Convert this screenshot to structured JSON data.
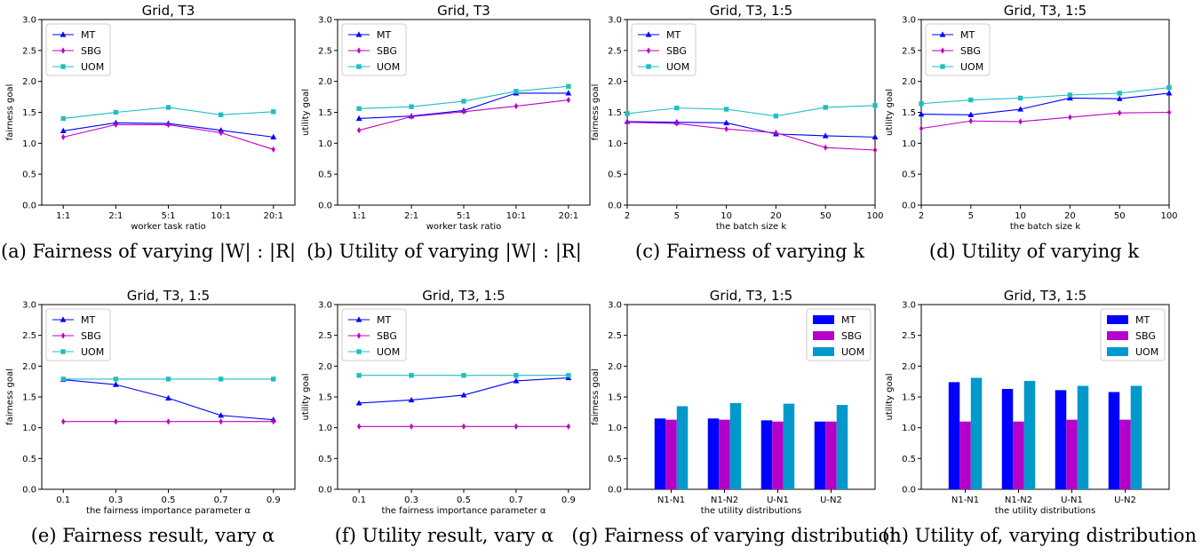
{
  "colors": {
    "MT": "#0000ff",
    "SBG": "#c000c0",
    "UOM": "#1fbfbf",
    "MT_bar": "#0000ff",
    "SBG_bar": "#b400c8",
    "UOM_bar": "#0099cc"
  },
  "chart_data": [
    {
      "type": "line",
      "title": "Grid, T3",
      "xlabel": "worker task ratio",
      "ylabel": "fairness goal",
      "caption": "(a) Fairness of varying |W| : |R|",
      "categories": [
        "1:1",
        "2:1",
        "5:1",
        "10:1",
        "20:1"
      ],
      "ylim": [
        0,
        3.0
      ],
      "yticks": [
        "0.0",
        "0.5",
        "1.0",
        "1.5",
        "2.0",
        "2.5",
        "3.0"
      ],
      "legend": "top-left",
      "series": [
        {
          "name": "MT",
          "values": [
            1.2,
            1.33,
            1.32,
            1.21,
            1.1
          ]
        },
        {
          "name": "SBG",
          "values": [
            1.1,
            1.3,
            1.3,
            1.17,
            0.9
          ]
        },
        {
          "name": "UOM",
          "values": [
            1.4,
            1.5,
            1.58,
            1.46,
            1.51
          ]
        }
      ]
    },
    {
      "type": "line",
      "title": "Grid, T3",
      "xlabel": "worker task ratio",
      "ylabel": "utility goal",
      "caption": "(b) Utility of varying |W| : |R|",
      "categories": [
        "1:1",
        "2:1",
        "5:1",
        "10:1",
        "20:1"
      ],
      "ylim": [
        0,
        3.0
      ],
      "yticks": [
        "0.0",
        "0.5",
        "1.0",
        "1.5",
        "2.0",
        "2.5",
        "3.0"
      ],
      "legend": "top-left",
      "series": [
        {
          "name": "MT",
          "values": [
            1.4,
            1.44,
            1.53,
            1.81,
            1.81
          ]
        },
        {
          "name": "SBG",
          "values": [
            1.21,
            1.43,
            1.51,
            1.6,
            1.7
          ]
        },
        {
          "name": "UOM",
          "values": [
            1.56,
            1.59,
            1.68,
            1.84,
            1.92
          ]
        }
      ]
    },
    {
      "type": "line",
      "title": "Grid, T3, 1:5",
      "xlabel": "the batch size k",
      "ylabel": "fairness goal",
      "caption": "(c) Fairness of varying k",
      "categories": [
        "2",
        "5",
        "10",
        "20",
        "50",
        "100"
      ],
      "ylim": [
        0,
        3.0
      ],
      "yticks": [
        "0.0",
        "0.5",
        "1.0",
        "1.5",
        "2.0",
        "2.5",
        "3.0"
      ],
      "legend": "top-left",
      "series": [
        {
          "name": "MT",
          "values": [
            1.35,
            1.34,
            1.33,
            1.15,
            1.12,
            1.1
          ]
        },
        {
          "name": "SBG",
          "values": [
            1.34,
            1.32,
            1.23,
            1.17,
            0.93,
            0.89
          ]
        },
        {
          "name": "UOM",
          "values": [
            1.48,
            1.57,
            1.55,
            1.44,
            1.58,
            1.61
          ]
        }
      ]
    },
    {
      "type": "line",
      "title": "Grid, T3, 1:5",
      "xlabel": "the batch size k",
      "ylabel": "utility goal",
      "caption": "(d) Utility of varying k",
      "categories": [
        "2",
        "5",
        "10",
        "20",
        "50",
        "100"
      ],
      "ylim": [
        0,
        3.0
      ],
      "yticks": [
        "0.0",
        "0.5",
        "1.0",
        "1.5",
        "2.0",
        "2.5",
        "3.0"
      ],
      "legend": "top-left",
      "series": [
        {
          "name": "MT",
          "values": [
            1.47,
            1.46,
            1.55,
            1.73,
            1.72,
            1.81
          ]
        },
        {
          "name": "SBG",
          "values": [
            1.24,
            1.36,
            1.35,
            1.42,
            1.49,
            1.5
          ]
        },
        {
          "name": "UOM",
          "values": [
            1.64,
            1.7,
            1.73,
            1.78,
            1.81,
            1.9
          ]
        }
      ]
    },
    {
      "type": "line",
      "title": "Grid, T3, 1:5",
      "xlabel": "the fairness importance parameter α",
      "ylabel": "fairness goal",
      "caption": "(e) Fairness result, vary α",
      "categories": [
        "0.1",
        "0.3",
        "0.5",
        "0.7",
        "0.9"
      ],
      "ylim": [
        0,
        3.0
      ],
      "yticks": [
        "0.0",
        "0.5",
        "1.0",
        "1.5",
        "2.0",
        "2.5",
        "3.0"
      ],
      "legend": "top-left",
      "series": [
        {
          "name": "MT",
          "values": [
            1.78,
            1.7,
            1.48,
            1.2,
            1.13
          ]
        },
        {
          "name": "SBG",
          "values": [
            1.1,
            1.1,
            1.1,
            1.1,
            1.1
          ]
        },
        {
          "name": "UOM",
          "values": [
            1.79,
            1.79,
            1.79,
            1.79,
            1.79
          ]
        }
      ]
    },
    {
      "type": "line",
      "title": "Grid, T3, 1:5",
      "xlabel": "the fairness importance parameter α",
      "ylabel": "utility goal",
      "caption": "(f) Utility result, vary α",
      "categories": [
        "0.1",
        "0.3",
        "0.5",
        "0.7",
        "0.9"
      ],
      "ylim": [
        0,
        3.0
      ],
      "yticks": [
        "0.0",
        "0.5",
        "1.0",
        "1.5",
        "2.0",
        "2.5",
        "3.0"
      ],
      "legend": "top-left",
      "series": [
        {
          "name": "MT",
          "values": [
            1.4,
            1.45,
            1.53,
            1.76,
            1.81
          ]
        },
        {
          "name": "SBG",
          "values": [
            1.02,
            1.02,
            1.02,
            1.02,
            1.02
          ]
        },
        {
          "name": "UOM",
          "values": [
            1.85,
            1.85,
            1.85,
            1.85,
            1.85
          ]
        }
      ]
    },
    {
      "type": "bar",
      "title": "Grid, T3, 1:5",
      "xlabel": "the utility distributions",
      "ylabel": "fairness goal",
      "caption": "(g) Fairness of varying distribution",
      "categories": [
        "N1-N1",
        "N1-N2",
        "U-N1",
        "U-N2"
      ],
      "ylim": [
        0,
        3.0
      ],
      "yticks": [
        "0.0",
        "0.5",
        "1.0",
        "1.5",
        "2.0",
        "2.5",
        "3.0"
      ],
      "legend": "top-right",
      "series": [
        {
          "name": "MT",
          "values": [
            1.15,
            1.15,
            1.12,
            1.1
          ]
        },
        {
          "name": "SBG",
          "values": [
            1.13,
            1.13,
            1.1,
            1.1
          ]
        },
        {
          "name": "UOM",
          "values": [
            1.35,
            1.4,
            1.39,
            1.37
          ]
        }
      ]
    },
    {
      "type": "bar",
      "title": "Grid, T3, 1:5",
      "xlabel": "the utility distributions",
      "ylabel": "utility goal",
      "caption": "(h) Utility of, varying distribution",
      "categories": [
        "N1-N1",
        "N1-N2",
        "U-N1",
        "U-N2"
      ],
      "ylim": [
        0,
        3.0
      ],
      "yticks": [
        "0.0",
        "0.5",
        "1.0",
        "1.5",
        "2.0",
        "2.5",
        "3.0"
      ],
      "legend": "top-right",
      "series": [
        {
          "name": "MT",
          "values": [
            1.74,
            1.63,
            1.61,
            1.58
          ]
        },
        {
          "name": "SBG",
          "values": [
            1.1,
            1.1,
            1.13,
            1.13
          ]
        },
        {
          "name": "UOM",
          "values": [
            1.81,
            1.76,
            1.68,
            1.68
          ]
        }
      ]
    }
  ]
}
